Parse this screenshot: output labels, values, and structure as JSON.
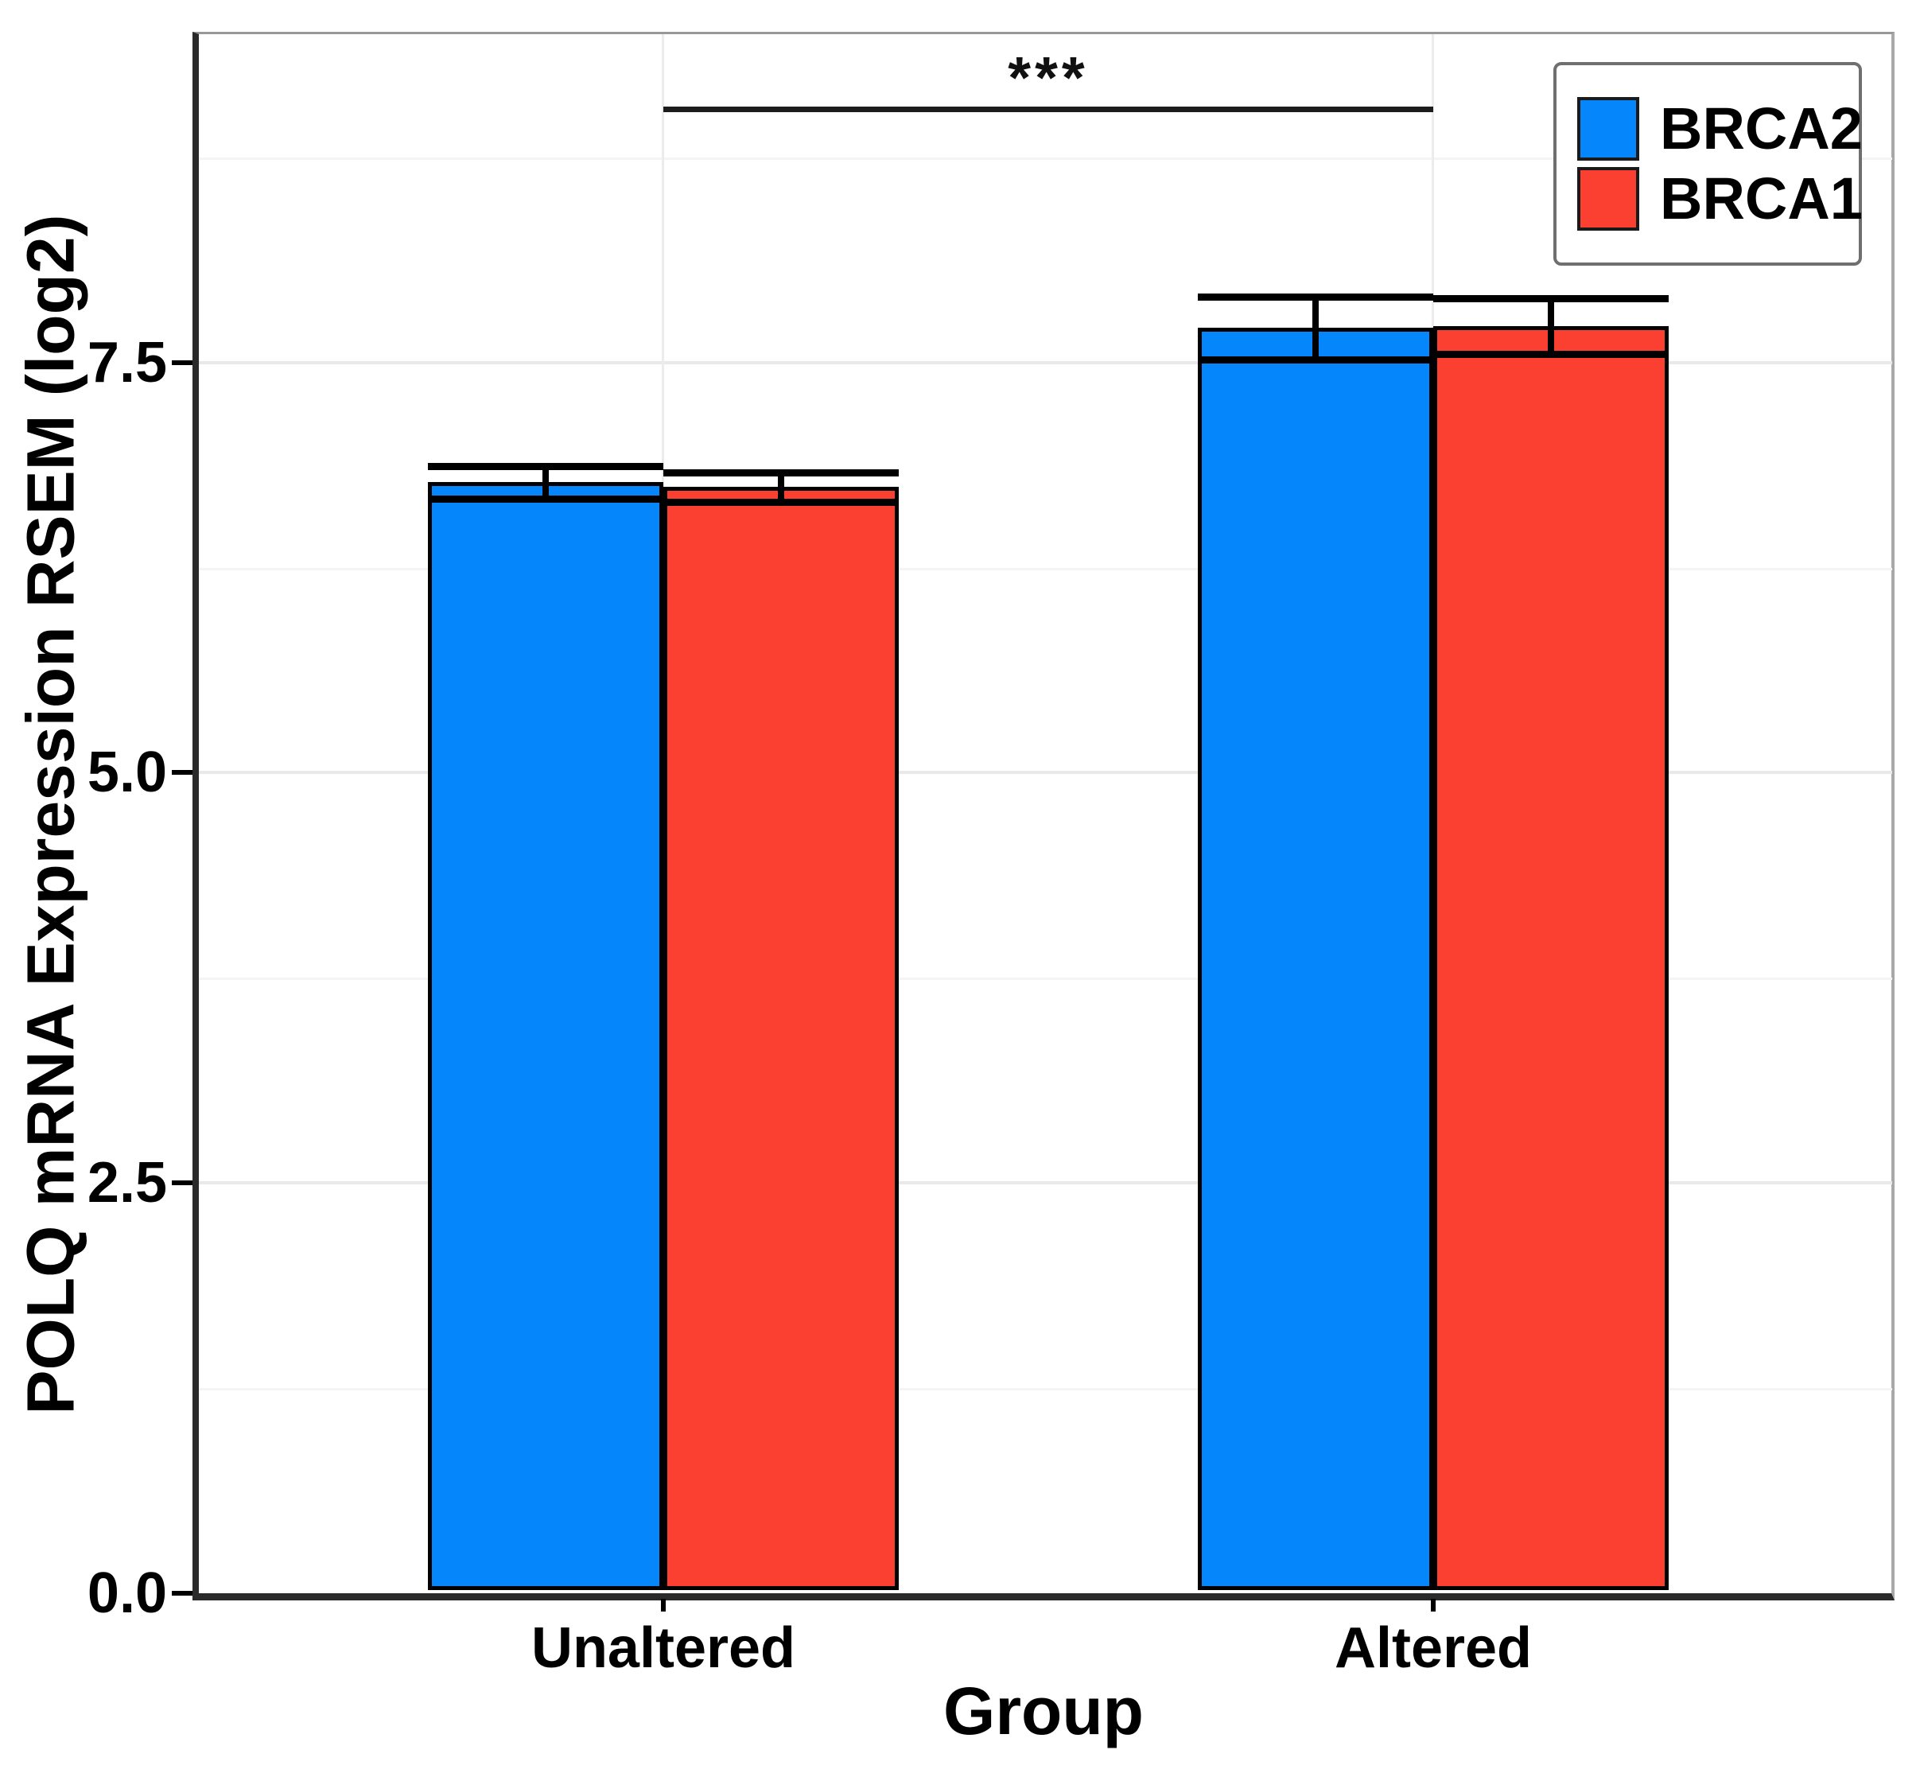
{
  "chart_data": {
    "type": "bar",
    "title": "",
    "xlabel": "Group",
    "ylabel": "POLQ mRNA Expression RSEM (log2)",
    "categories": [
      "Unaltered",
      "Altered"
    ],
    "series": [
      {
        "name": "BRCA2",
        "color": "#0587FB",
        "values": [
          6.77,
          7.71
        ],
        "errors": [
          0.1,
          0.19
        ]
      },
      {
        "name": "BRCA1",
        "color": "#FB4031",
        "values": [
          6.74,
          7.72
        ],
        "errors": [
          0.09,
          0.17
        ]
      }
    ],
    "bar_border_color": "#000000",
    "y_ticks": [
      0,
      2.5,
      5,
      7.5
    ],
    "y_tick_labels": [
      "0.0",
      "2.5",
      "5.0",
      "7.5"
    ],
    "y_minor_gridlines": [
      1.25,
      3.75,
      6.25,
      8.75
    ],
    "ylim": [
      0,
      9.5
    ],
    "grid": true,
    "legend_position": "top-right",
    "significance": {
      "label": "***",
      "from": "Unaltered",
      "to": "Altered",
      "y": 9.06
    }
  }
}
